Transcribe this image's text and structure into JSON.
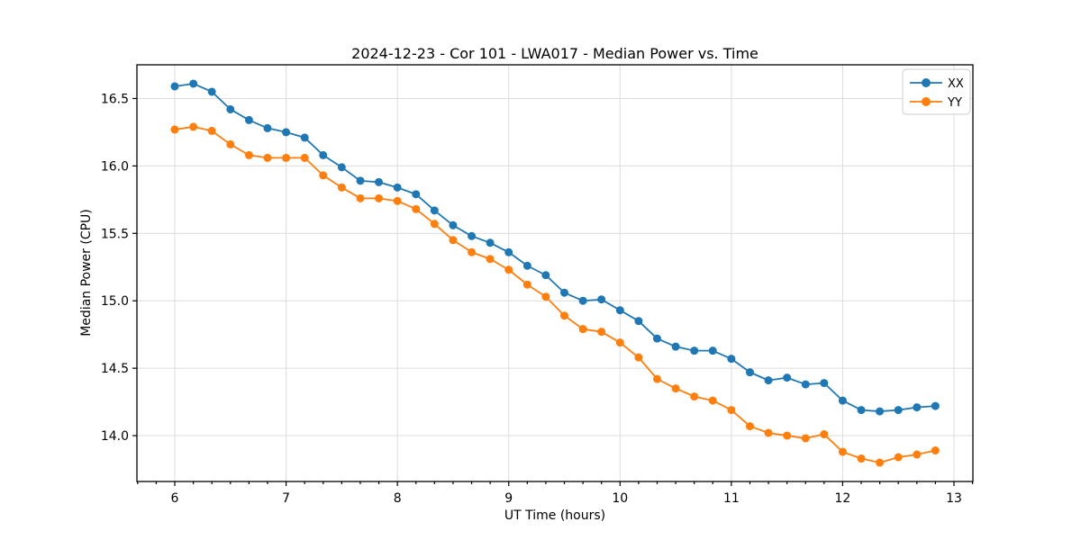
{
  "chart_data": {
    "type": "line",
    "title": "2024-12-23 - Cor 101 - LWA017 - Median Power vs. Time",
    "xlabel": "UT Time (hours)",
    "ylabel": "Median Power (CPU)",
    "xlim": [
      5.66,
      13.17
    ],
    "ylim": [
      13.66,
      16.75
    ],
    "grid": true,
    "legend_position": "upper right",
    "x_ticks": [
      6,
      7,
      8,
      9,
      10,
      11,
      12,
      13
    ],
    "x_tick_labels": [
      "6",
      "7",
      "8",
      "9",
      "10",
      "11",
      "12",
      "13"
    ],
    "x_minor_tick_step_hours": 0.1667,
    "y_ticks": [
      14.0,
      14.5,
      15.0,
      15.5,
      16.0,
      16.5
    ],
    "y_tick_labels": [
      "14.0",
      "14.5",
      "15.0",
      "15.5",
      "16.0",
      "16.5"
    ],
    "x": [
      6.0,
      6.167,
      6.333,
      6.5,
      6.667,
      6.833,
      7.0,
      7.167,
      7.333,
      7.5,
      7.667,
      7.833,
      8.0,
      8.167,
      8.333,
      8.5,
      8.667,
      8.833,
      9.0,
      9.167,
      9.333,
      9.5,
      9.667,
      9.833,
      10.0,
      10.167,
      10.333,
      10.5,
      10.667,
      10.833,
      11.0,
      11.167,
      11.333,
      11.5,
      11.667,
      11.833,
      12.0,
      12.167,
      12.333,
      12.5,
      12.667,
      12.833
    ],
    "series": [
      {
        "name": "XX",
        "color": "#1f77b4",
        "marker": "circle",
        "values": [
          16.59,
          16.61,
          16.55,
          16.42,
          16.34,
          16.28,
          16.25,
          16.21,
          16.08,
          15.99,
          15.89,
          15.88,
          15.84,
          15.79,
          15.67,
          15.56,
          15.48,
          15.43,
          15.36,
          15.26,
          15.19,
          15.06,
          15.0,
          15.01,
          14.93,
          14.85,
          14.72,
          14.66,
          14.63,
          14.63,
          14.57,
          14.47,
          14.41,
          14.43,
          14.38,
          14.39,
          14.26,
          14.19,
          14.18,
          14.19,
          14.21,
          14.22
        ]
      },
      {
        "name": "YY",
        "color": "#ff7f0e",
        "marker": "circle",
        "values": [
          16.27,
          16.29,
          16.26,
          16.16,
          16.08,
          16.06,
          16.06,
          16.06,
          15.93,
          15.84,
          15.76,
          15.76,
          15.74,
          15.68,
          15.57,
          15.45,
          15.36,
          15.31,
          15.23,
          15.12,
          15.03,
          14.89,
          14.79,
          14.77,
          14.69,
          14.58,
          14.42,
          14.35,
          14.29,
          14.26,
          14.19,
          14.07,
          14.02,
          14.0,
          13.98,
          14.01,
          13.88,
          13.83,
          13.8,
          13.84,
          13.86,
          13.89
        ]
      }
    ],
    "style": {
      "grid_color": "#dcdcdc",
      "spine_color": "#000000",
      "background": "#ffffff",
      "legend_border_color": "#cccccc"
    }
  }
}
